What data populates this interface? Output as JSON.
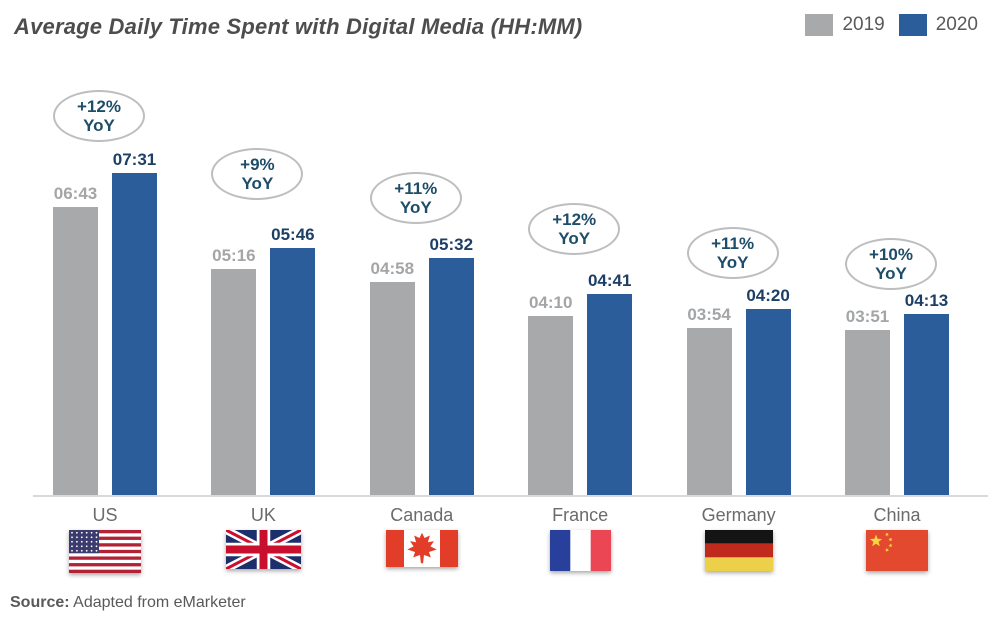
{
  "title": "Average Daily Time Spent with Digital Media (HH:MM)",
  "legend": {
    "items": [
      {
        "label": "2019",
        "color": "#a7a9ab"
      },
      {
        "label": "2020",
        "color": "#2b5d9b"
      }
    ],
    "position": "top-right"
  },
  "source": {
    "prefix": "Source:",
    "text": "Adapted from eMarketer"
  },
  "colors": {
    "bar_2019": "#a7a9ab",
    "bar_2020": "#2b5d9b",
    "label_2019": "#a3a5a7",
    "label_2020": "#1d3f66",
    "yoy_text": "#1d4d68",
    "axis_line": "#d9d9d9",
    "title_text": "#4d4d4f",
    "country_text": "#6b6b6d"
  },
  "chart_data": {
    "type": "bar",
    "title": "Average Daily Time Spent with Digital Media (HH:MM)",
    "unit": "HH:MM",
    "categories": [
      "US",
      "UK",
      "Canada",
      "France",
      "Germany",
      "China"
    ],
    "series": [
      {
        "name": "2019",
        "labels": [
          "06:43",
          "05:16",
          "04:58",
          "04:10",
          "03:54",
          "03:51"
        ],
        "minutes": [
          403,
          316,
          298,
          250,
          234,
          231
        ]
      },
      {
        "name": "2020",
        "labels": [
          "07:31",
          "05:46",
          "05:32",
          "04:41",
          "04:20",
          "04:13"
        ],
        "minutes": [
          451,
          346,
          332,
          281,
          260,
          253
        ]
      }
    ],
    "annotations_yoy": [
      "+12% YoY",
      "+9% YoY",
      "+11% YoY",
      "+12% YoY",
      "+11% YoY",
      "+10% YoY"
    ],
    "yoy_values": [
      "+12%",
      "+9%",
      "+11%",
      "+12%",
      "+11%",
      "+10%"
    ],
    "xlabel": "",
    "ylabel": "",
    "value_axis_hidden": true,
    "grid": false,
    "legend_position": "top-right",
    "flags": [
      "us",
      "uk",
      "canada",
      "france",
      "germany",
      "china"
    ]
  }
}
